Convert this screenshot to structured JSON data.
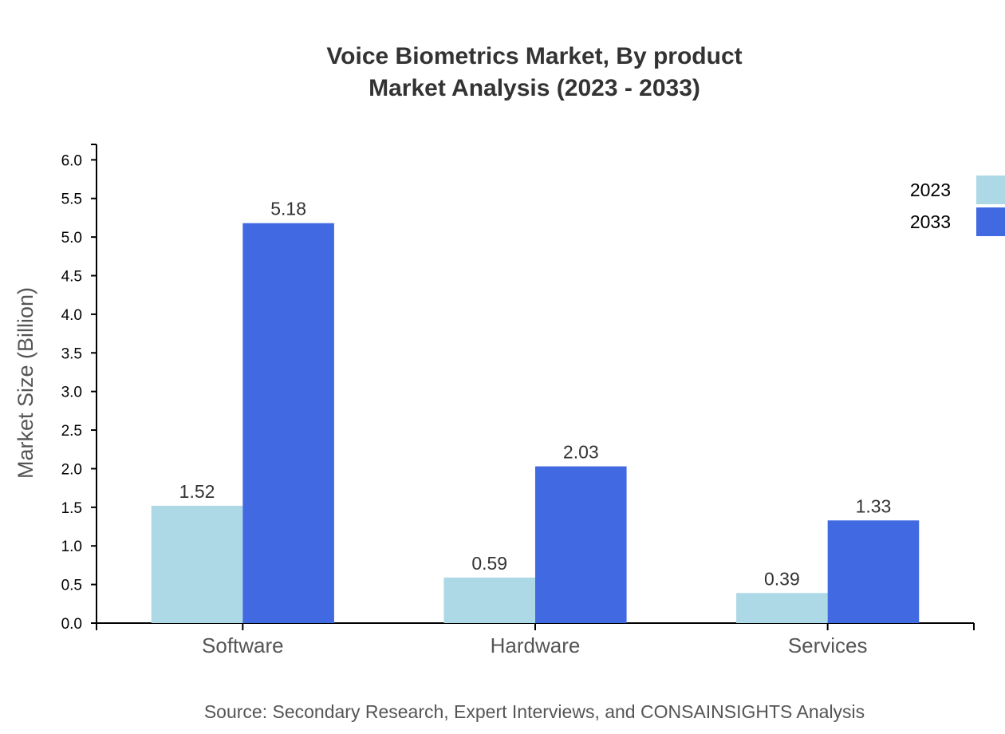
{
  "chart_data": {
    "type": "bar",
    "title": "Voice Biometrics Market, By product",
    "subtitle": "Market Analysis (2023 - 2033)",
    "xlabel": "",
    "ylabel": "Market Size (Billion)",
    "ylim": [
      0,
      6.2
    ],
    "yticks": [
      "0.0",
      "0.5",
      "1.0",
      "1.5",
      "2.0",
      "2.5",
      "3.0",
      "3.5",
      "4.0",
      "4.5",
      "5.0",
      "5.5",
      "6.0"
    ],
    "categories": [
      "Software",
      "Hardware",
      "Services"
    ],
    "series": [
      {
        "name": "2023",
        "values": [
          1.52,
          0.59,
          0.39
        ],
        "color": "#ADD8E6"
      },
      {
        "name": "2033",
        "values": [
          5.18,
          2.03,
          1.33
        ],
        "color": "#4169E1"
      }
    ],
    "grid": false,
    "legend_position": "top-right",
    "source": "Source: Secondary Research, Expert Interviews, and CONSAINSIGHTS Analysis"
  }
}
